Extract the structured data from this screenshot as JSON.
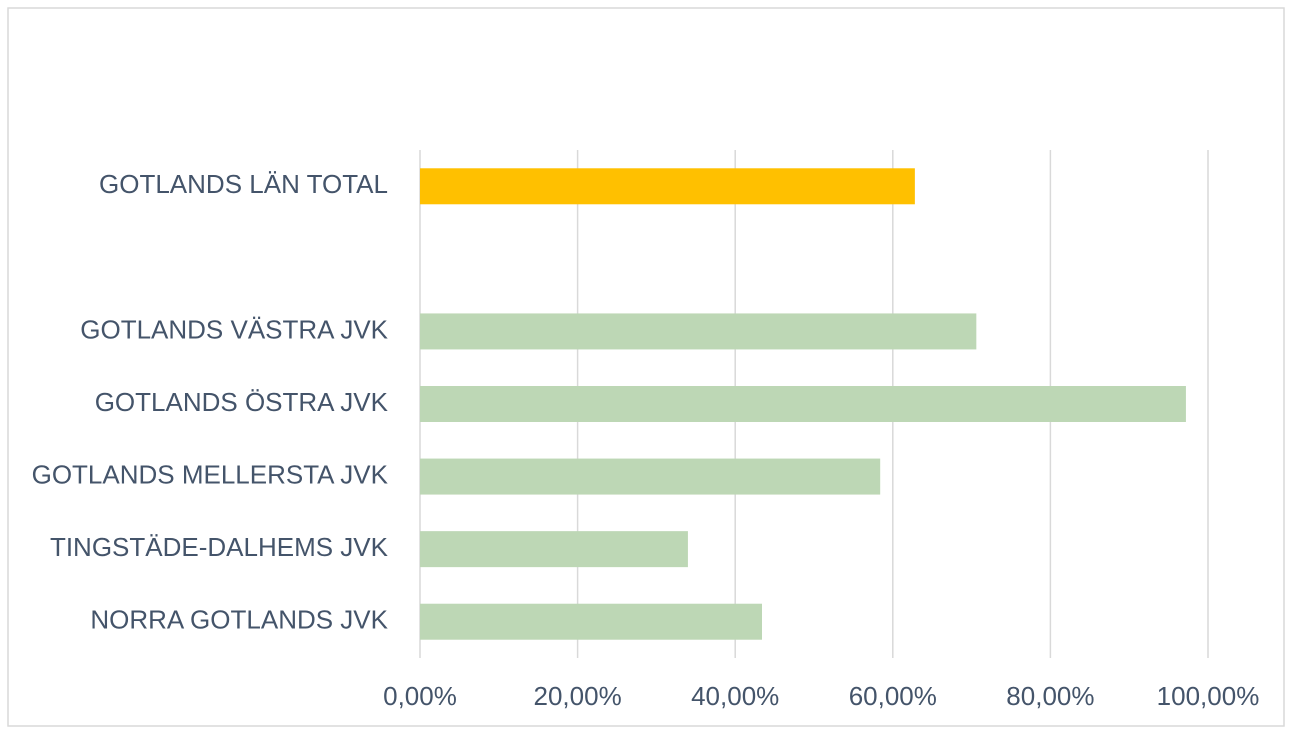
{
  "chart_data": {
    "type": "hbar",
    "categories": [
      "GOTLANDS LÄN TOTAL",
      null,
      "GOTLANDS VÄSTRA JVK",
      "GOTLANDS ÖSTRA JVK",
      "GOTLANDS MELLERSTA JVK",
      "TINGSTÄDE-DALHEMS JVK",
      "NORRA GOTLANDS JVK"
    ],
    "values": [
      62.8,
      null,
      70.6,
      97.2,
      58.4,
      34.0,
      43.4
    ],
    "colors": [
      "#ffc000",
      null,
      "#bdd7b5",
      "#bdd7b5",
      "#bdd7b5",
      "#bdd7b5",
      "#bdd7b5"
    ],
    "xlim": [
      0,
      100
    ],
    "xticks": [
      {
        "value": 0,
        "label": "0,00%"
      },
      {
        "value": 20,
        "label": "20,00%"
      },
      {
        "value": 40,
        "label": "40,00%"
      },
      {
        "value": 60,
        "label": "60,00%"
      },
      {
        "value": 80,
        "label": "80,00%"
      },
      {
        "value": 100,
        "label": "100,00%"
      }
    ],
    "grid": true
  }
}
